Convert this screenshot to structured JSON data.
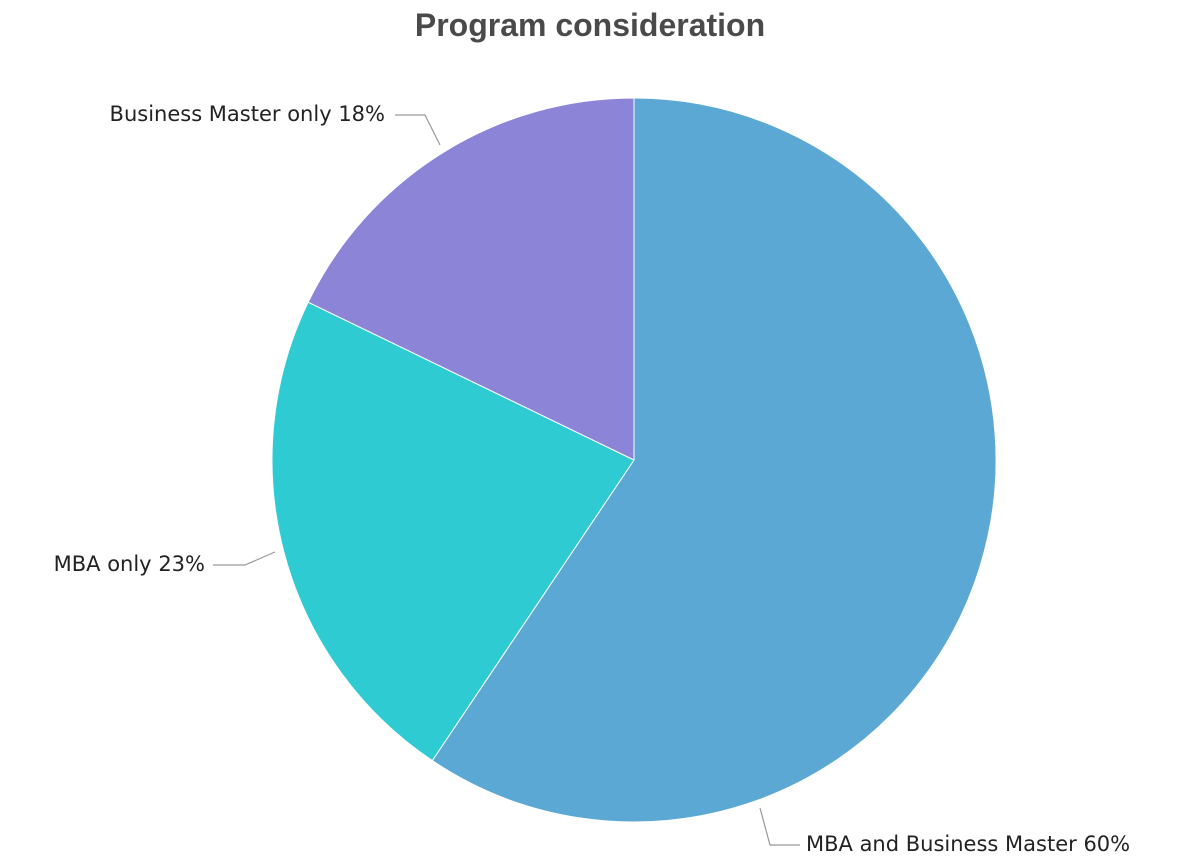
{
  "chart_data": {
    "type": "pie",
    "title": "Program consideration",
    "categories": [
      "MBA and Business Master",
      "MBA only",
      "Business Master only"
    ],
    "values": [
      60,
      23,
      18
    ],
    "value_labels": [
      "60%",
      "23%",
      "18%"
    ],
    "colors": [
      "#5ca8d4",
      "#2ecbd3",
      "#8b84d7"
    ]
  }
}
